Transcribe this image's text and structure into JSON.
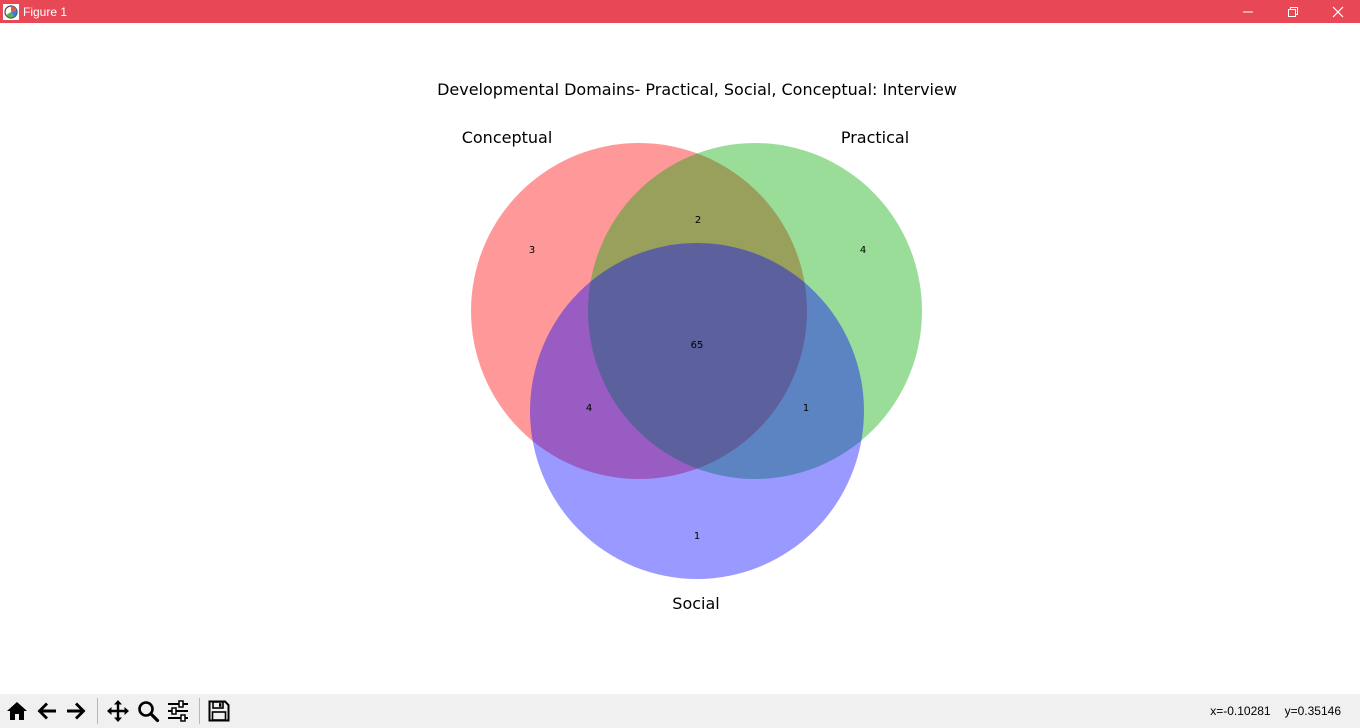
{
  "window": {
    "title": "Figure 1",
    "titlebar_color": "#e84856"
  },
  "icons": {
    "app": "matplotlib-figure-icon",
    "minimize": "minimize-icon",
    "maximize": "restore-icon",
    "close": "close-icon"
  },
  "chart_data": {
    "type": "venn3",
    "title": "Developmental Domains- Practical, Social, Conceptual: Interview",
    "set_labels": [
      "Conceptual",
      "Practical",
      "Social"
    ],
    "set_colors": [
      "#ff0000",
      "#00aa00",
      "#0000ff"
    ],
    "regions": {
      "conceptual_only": 3,
      "practical_only": 4,
      "social_only": 1,
      "conceptual_practical": 2,
      "conceptual_social": 4,
      "practical_social": 1,
      "all_three": 65
    }
  },
  "toolbar": {
    "buttons": [
      "home-icon",
      "back-icon",
      "forward-icon",
      "pan-icon",
      "zoom-icon",
      "configure-subplots-icon",
      "save-icon"
    ],
    "x_readout": "x=-0.10281",
    "y_readout": "y=0.35146"
  }
}
